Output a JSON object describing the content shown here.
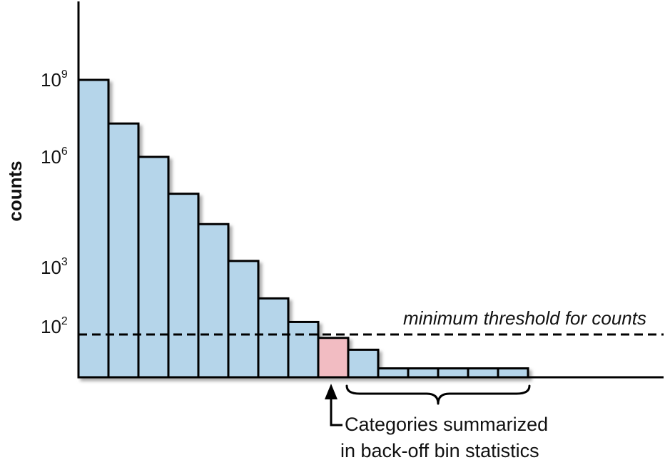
{
  "chart_data": {
    "type": "bar",
    "scale": "log",
    "ylabel": "counts",
    "y_ticks": [
      {
        "base": "10",
        "exp": "9",
        "value": 1000000000
      },
      {
        "base": "10",
        "exp": "6",
        "value": 1000000
      },
      {
        "base": "10",
        "exp": "3",
        "value": 1000
      },
      {
        "base": "10",
        "exp": "2",
        "value": 100
      }
    ],
    "values": [
      1000000000,
      20000000,
      1000000,
      100000,
      15000,
      1500,
      300,
      120,
      60,
      35,
      15,
      15,
      15,
      15,
      15
    ],
    "highlight_index": 8,
    "colors": {
      "bar": "#b5d5ea",
      "highlight": "#f2bcc2",
      "outline": "#000000",
      "shadow": "#9a9a9a"
    },
    "threshold": {
      "value": 70,
      "label": "minimum threshold for counts",
      "style": "dashed"
    },
    "annotation": {
      "line1": "Categories summarized",
      "line2": "in back-off bin statistics",
      "arrow_target_index": 8,
      "brace_from_index": 9,
      "brace_to_index": 14
    },
    "grid": false,
    "legend": "none"
  }
}
